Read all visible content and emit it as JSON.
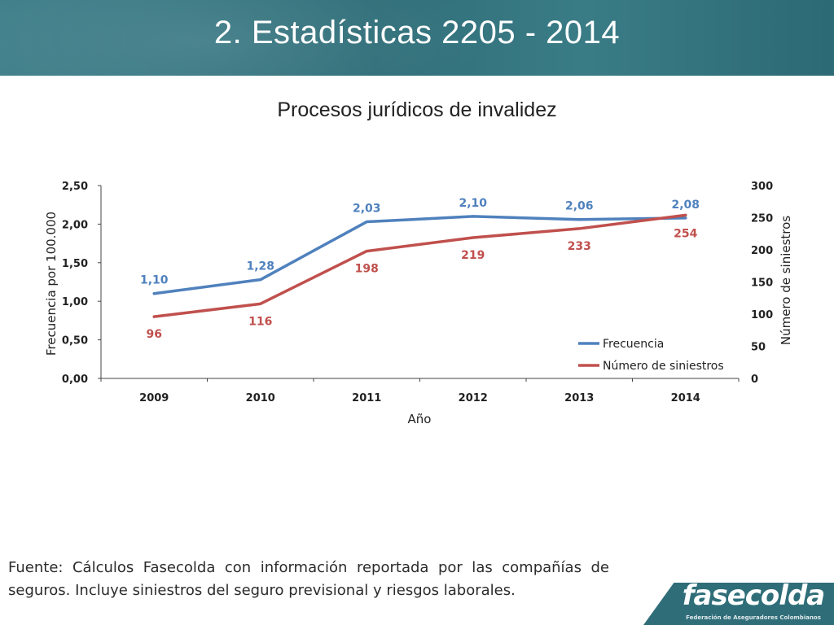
{
  "header": {
    "title": "2. Estadísticas 2205 - 2014"
  },
  "chart_data": {
    "type": "line",
    "title": "Procesos jurídicos de invalidez",
    "xlabel": "Año",
    "ylabel_left": "Frecuencia por 100.000",
    "ylabel_right": "Número de siniestros",
    "categories": [
      "2009",
      "2010",
      "2011",
      "2012",
      "2013",
      "2014"
    ],
    "ylim_left": [
      0,
      2.5
    ],
    "ylim_right": [
      0,
      300
    ],
    "yticks_left": [
      "0,00",
      "0,50",
      "1,00",
      "1,50",
      "2,00",
      "2,50"
    ],
    "yticks_right": [
      "0",
      "50",
      "100",
      "150",
      "200",
      "250",
      "300"
    ],
    "grid": false,
    "legend_position": "bottom-right",
    "series": [
      {
        "name": "Frecuencia",
        "axis": "left",
        "color": "#4f81bd",
        "values": [
          1.1,
          1.28,
          2.03,
          2.1,
          2.06,
          2.08
        ],
        "labels": [
          "1,10",
          "1,28",
          "2,03",
          "2,10",
          "2,06",
          "2,08"
        ]
      },
      {
        "name": "Número de siniestros",
        "axis": "right",
        "color": "#c0504d",
        "values": [
          96,
          116,
          198,
          219,
          233,
          254
        ],
        "labels": [
          "96",
          "116",
          "198",
          "219",
          "233",
          "254"
        ]
      }
    ]
  },
  "footer": {
    "source_text": "Fuente: Cálculos Fasecolda con información reportada por las compañías de seguros. Incluye siniestros del seguro previsional y riesgos laborales."
  },
  "logo": {
    "name": "fasecolda",
    "subtitle": "Federación de Aseguradores Colombianos"
  }
}
